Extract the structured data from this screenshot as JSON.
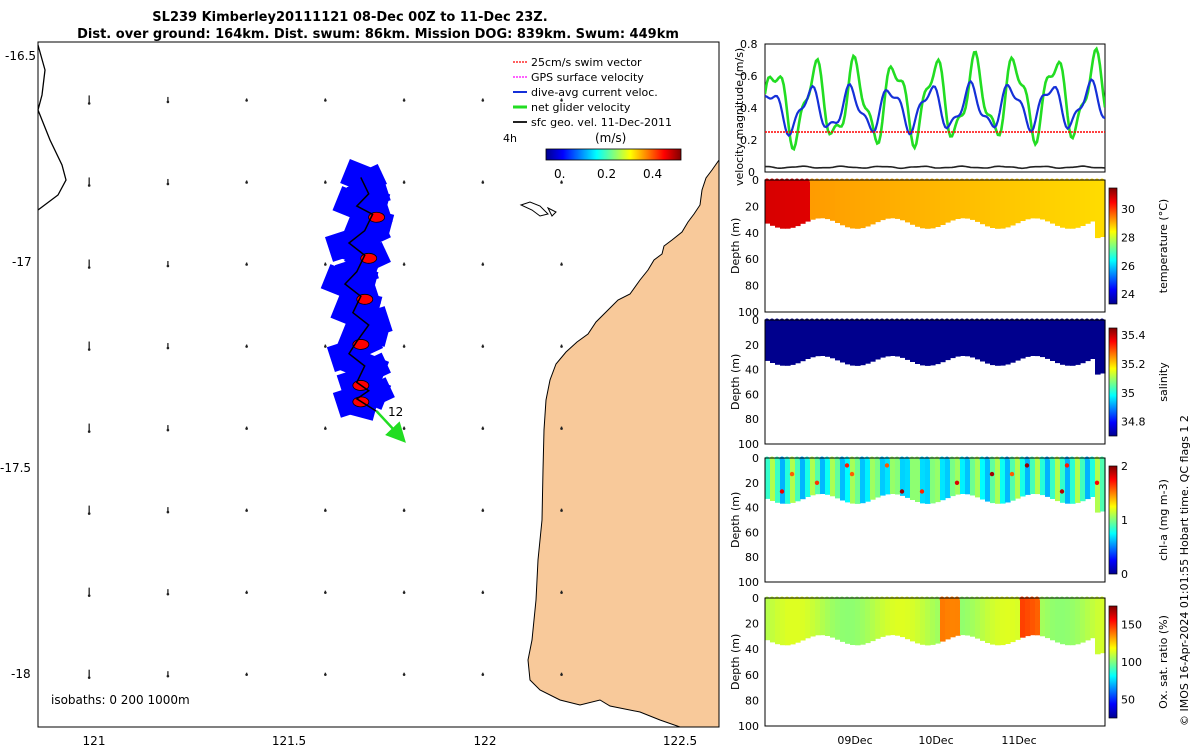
{
  "title_line1": "SL239 Kimberley20111121 08-Dec 00Z to 11-Dec 23Z.",
  "title_line2": "Dist. over ground: 164km. Dist. swum: 86km. Mission DOG: 839km. Swum: 449km",
  "credit": "© IMOS 16-Apr-2024 01:01:55 Hobart time. QC flags 1  2",
  "colors": {
    "land": "#f8c99a",
    "track_blue": "#0000ff",
    "track_red": "#ff0000",
    "net_green": "#22dd22",
    "dive_blue": "#1530d8",
    "swim_red": "#ff0000",
    "gps_magenta": "#ff00ff",
    "sfc_black": "#222222"
  },
  "chart_data": [
    {
      "id": "map",
      "type": "scatter",
      "x_ticks": [
        "121",
        "121.5",
        "122",
        "122.5"
      ],
      "y_ticks": [
        "-16.5",
        "-17",
        "-17.5",
        "-18"
      ],
      "xlim": [
        120.87,
        122.6
      ],
      "ylim": [
        -18.13,
        -16.46
      ],
      "legend": [
        {
          "label": "25cm/s swim vector",
          "color": "#ff0000"
        },
        {
          "label": "GPS surface velocity",
          "color": "#ff00ff"
        },
        {
          "label": "dive-avg current veloc.",
          "color": "#1530d8"
        },
        {
          "label": "net glider velocity",
          "color": "#22dd22"
        },
        {
          "label": "sfc geo. vel. 11-Dec-2011",
          "color": "#222222"
        }
      ],
      "time_label": "4h",
      "colorbar": {
        "label": "(m/s)",
        "ticks": [
          "0.",
          "0.2",
          "0.4"
        ],
        "range": [
          0,
          0.5
        ]
      },
      "annotation": "12",
      "isobaths": "isobaths: 0   200  1000m",
      "track": [
        [
          121.69,
          -16.79
        ],
        [
          121.71,
          -16.83
        ],
        [
          121.68,
          -16.86
        ],
        [
          121.72,
          -16.88
        ],
        [
          121.7,
          -16.92
        ],
        [
          121.66,
          -16.95
        ],
        [
          121.7,
          -16.98
        ],
        [
          121.68,
          -17.02
        ],
        [
          121.65,
          -17.05
        ],
        [
          121.69,
          -17.08
        ],
        [
          121.67,
          -17.12
        ],
        [
          121.71,
          -17.15
        ],
        [
          121.68,
          -17.19
        ],
        [
          121.66,
          -17.22
        ],
        [
          121.7,
          -17.25
        ],
        [
          121.68,
          -17.29
        ],
        [
          121.71,
          -17.31
        ],
        [
          121.68,
          -17.33
        ],
        [
          121.73,
          -17.36
        ]
      ]
    },
    {
      "id": "velocity",
      "type": "line",
      "ylabel": "velocity magnitude (m/s)",
      "ylim": [
        0,
        0.8
      ],
      "y_ticks": [
        "0",
        "0.2",
        "0.4",
        "0.6",
        "0.8"
      ],
      "xlim": [
        8.0,
        12.0
      ],
      "series": [
        {
          "name": "net glider velocity",
          "color": "#22dd22",
          "mean": 0.42,
          "amp": 0.22,
          "trend": 0.06
        },
        {
          "name": "dive-avg current veloc.",
          "color": "#1530d8",
          "mean": 0.38,
          "amp": 0.12,
          "trend": 0.04
        },
        {
          "name": "25cm/s swim vector",
          "color": "#ff0000",
          "mean": 0.25,
          "amp": 0.0,
          "trend": 0.0
        },
        {
          "name": "sfc geo. vel.",
          "color": "#222222",
          "mean": 0.03,
          "amp": 0.005,
          "trend": 0.0
        }
      ]
    },
    {
      "id": "temperature",
      "type": "heatmap",
      "ylabel": "Depth (m)",
      "cbar_label": "temperature (°C)",
      "cbar_ticks": [
        "24",
        "26",
        "28",
        "30"
      ],
      "cbar_range": [
        23.3,
        31.5
      ],
      "ylim": [
        0,
        100
      ],
      "y_ticks": [
        "0",
        "20",
        "40",
        "60",
        "80",
        "100"
      ],
      "base": 29.3
    },
    {
      "id": "salinity",
      "type": "heatmap",
      "ylabel": "Depth (m)",
      "cbar_label": "salinity",
      "cbar_ticks": [
        "34.8",
        "35",
        "35.2",
        "35.4"
      ],
      "cbar_range": [
        34.7,
        35.45
      ],
      "ylim": [
        0,
        100
      ],
      "y_ticks": [
        "0",
        "20",
        "40",
        "60",
        "80",
        "100"
      ],
      "base": 34.71
    },
    {
      "id": "chla",
      "type": "heatmap",
      "ylabel": "Depth (m)",
      "cbar_label": "chl-a (mg m-3)",
      "cbar_ticks": [
        "0",
        "1",
        "2"
      ],
      "cbar_range": [
        0,
        2
      ],
      "ylim": [
        0,
        100
      ],
      "y_ticks": [
        "0",
        "20",
        "40",
        "60",
        "80",
        "100"
      ],
      "base": 0.85
    },
    {
      "id": "oxygen",
      "type": "heatmap",
      "ylabel": "Depth (m)",
      "cbar_label": "Ox. sat. ratio (%)",
      "cbar_ticks": [
        "50",
        "100",
        "150"
      ],
      "cbar_range": [
        25,
        175
      ],
      "ylim": [
        0,
        100
      ],
      "y_ticks": [
        "0",
        "20",
        "40",
        "60",
        "80",
        "100"
      ],
      "base": 108
    }
  ],
  "time_axis": [
    "09Dec",
    "10Dec",
    "11Dec"
  ]
}
